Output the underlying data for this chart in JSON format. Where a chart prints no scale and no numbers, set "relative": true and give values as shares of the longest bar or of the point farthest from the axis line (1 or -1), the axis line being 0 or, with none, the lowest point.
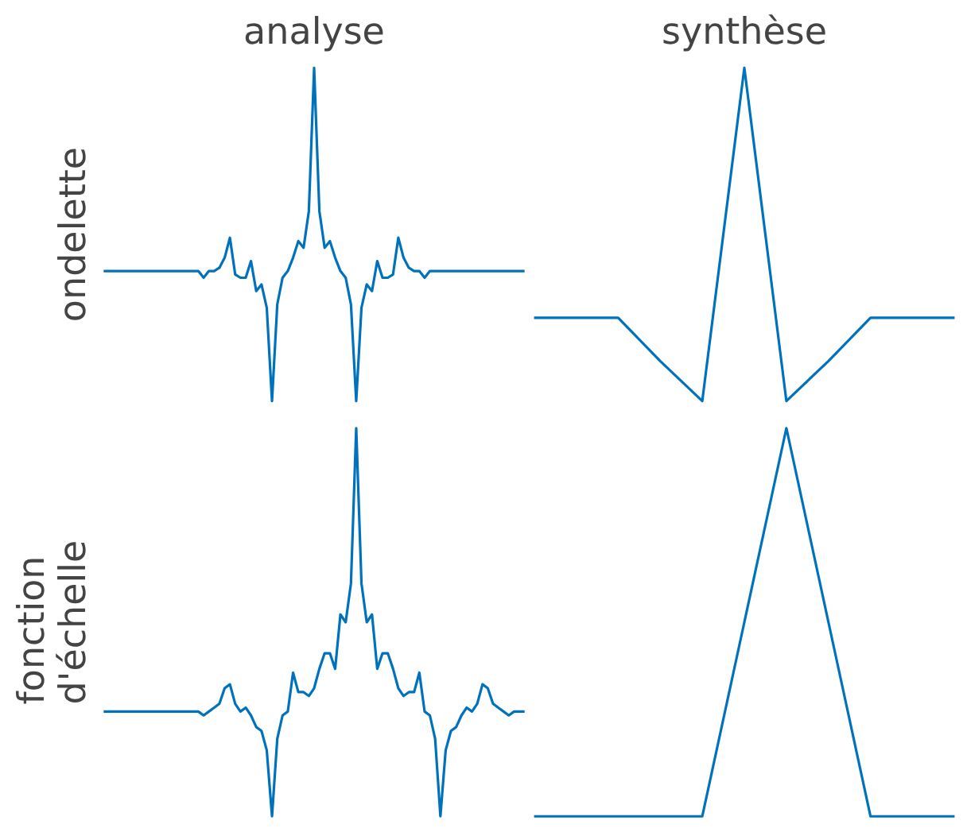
{
  "chart_data": [
    {
      "type": "line",
      "title": "analyse",
      "ylabel": "ondelette",
      "relative": true,
      "color": "#0072bd",
      "categories": [
        null,
        null,
        null,
        null,
        null,
        null,
        null,
        null,
        null,
        null,
        null,
        null,
        null,
        null,
        null,
        null,
        null,
        null,
        null,
        null,
        null,
        null,
        null,
        null,
        null,
        null,
        null,
        null,
        null,
        null,
        null,
        null,
        null,
        null,
        null,
        null,
        null,
        null,
        null,
        null,
        null,
        null,
        null,
        null,
        null,
        null,
        null,
        null,
        null,
        null,
        null,
        null,
        null,
        null,
        null,
        null,
        null,
        null,
        null,
        null,
        null,
        null,
        null,
        null,
        null,
        null,
        null,
        null,
        null,
        null,
        null,
        null,
        null,
        null,
        null,
        null,
        null,
        null,
        null,
        null,
        null
      ],
      "values": [
        0.39,
        0.39,
        0.39,
        0.39,
        0.39,
        0.39,
        0.39,
        0.39,
        0.39,
        0.39,
        0.39,
        0.39,
        0.39,
        0.39,
        0.39,
        0.39,
        0.39,
        0.39,
        0.39,
        0.37,
        0.39,
        0.39,
        0.4,
        0.43,
        0.49,
        0.38,
        0.37,
        0.37,
        0.42,
        0.33,
        0.35,
        0.28,
        0,
        0.29,
        0.37,
        0.39,
        0.43,
        0.48,
        0.46,
        0.57,
        1,
        0.57,
        0.46,
        0.48,
        0.43,
        0.39,
        0.37,
        0.29,
        0,
        0.28,
        0.35,
        0.33,
        0.42,
        0.37,
        0.37,
        0.38,
        0.49,
        0.43,
        0.4,
        0.39,
        0.39,
        0.37,
        0.39,
        0.39,
        0.39,
        0.39,
        0.39,
        0.39,
        0.39,
        0.39,
        0.39,
        0.39,
        0.39,
        0.39,
        0.39,
        0.39,
        0.39,
        0.39,
        0.39,
        0.39,
        0.39
      ]
    },
    {
      "type": "line",
      "title": "synthèse",
      "relative": true,
      "color": "#0072bd",
      "categories": [
        null,
        null,
        null,
        null,
        null,
        null,
        null,
        null,
        null,
        null,
        null
      ],
      "values": [
        0.25,
        0.25,
        0.25,
        0.12,
        0,
        1,
        0,
        0.12,
        0.25,
        0.25,
        0.25
      ]
    },
    {
      "type": "line",
      "ylabel": "fonction\nd'échelle",
      "relative": true,
      "color": "#0072bd",
      "categories": [
        null,
        null,
        null,
        null,
        null,
        null,
        null,
        null,
        null,
        null,
        null,
        null,
        null,
        null,
        null,
        null,
        null,
        null,
        null,
        null,
        null,
        null,
        null,
        null,
        null,
        null,
        null,
        null,
        null,
        null,
        null,
        null,
        null,
        null,
        null,
        null,
        null,
        null,
        null,
        null,
        null,
        null,
        null,
        null,
        null,
        null,
        null,
        null,
        null,
        null,
        null,
        null,
        null,
        null,
        null,
        null,
        null,
        null,
        null,
        null,
        null,
        null,
        null,
        null,
        null,
        null,
        null,
        null,
        null,
        null,
        null,
        null,
        null,
        null,
        null,
        null,
        null,
        null,
        null,
        null,
        null
      ],
      "values": [
        0.27,
        0.27,
        0.27,
        0.27,
        0.27,
        0.27,
        0.27,
        0.27,
        0.27,
        0.27,
        0.27,
        0.27,
        0.27,
        0.27,
        0.27,
        0.27,
        0.27,
        0.27,
        0.27,
        0.26,
        0.27,
        0.28,
        0.29,
        0.33,
        0.34,
        0.29,
        0.27,
        0.28,
        0.26,
        0.23,
        0.22,
        0.17,
        0,
        0.2,
        0.26,
        0.27,
        0.37,
        0.32,
        0.32,
        0.31,
        0.33,
        0.38,
        0.42,
        0.42,
        0.38,
        0.52,
        0.5,
        0.6,
        1,
        0.6,
        0.5,
        0.52,
        0.38,
        0.42,
        0.42,
        0.38,
        0.33,
        0.31,
        0.32,
        0.32,
        0.37,
        0.27,
        0.26,
        0.2,
        0,
        0.17,
        0.22,
        0.23,
        0.26,
        0.28,
        0.27,
        0.29,
        0.34,
        0.33,
        0.29,
        0.28,
        0.27,
        0.26,
        0.27,
        0.27,
        0.27
      ]
    },
    {
      "type": "line",
      "relative": true,
      "color": "#0072bd",
      "categories": [
        null,
        null,
        null,
        null,
        null,
        null,
        null,
        null,
        null,
        null,
        null
      ],
      "values": [
        0,
        0,
        0,
        0,
        0,
        0.5,
        1,
        0.5,
        0,
        0,
        0
      ]
    }
  ]
}
